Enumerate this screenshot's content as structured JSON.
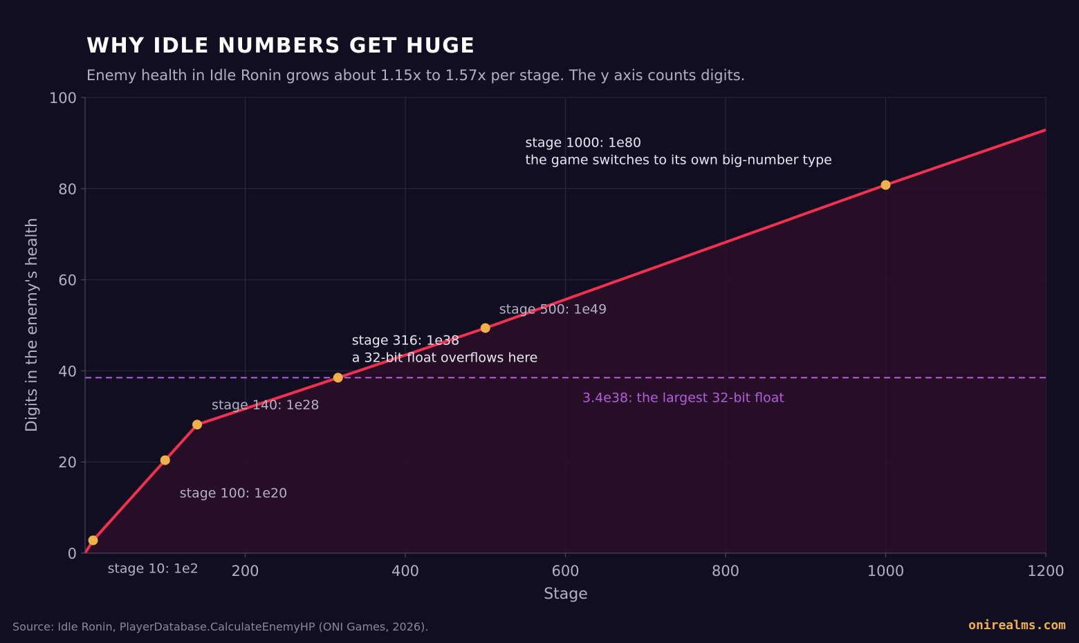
{
  "chart_data": {
    "type": "line",
    "title": "WHY IDLE NUMBERS GET HUGE",
    "subtitle": "Enemy health in Idle Ronin grows about 1.15x to 1.57x per stage. The y axis counts digits.",
    "xlabel": "Stage",
    "ylabel": "Digits in the enemy's health",
    "xlim": [
      0,
      1200
    ],
    "ylim": [
      0,
      100
    ],
    "x_ticks": [
      200,
      400,
      600,
      800,
      1000,
      1200
    ],
    "y_ticks": [
      0,
      20,
      40,
      60,
      80,
      100
    ],
    "grid": true,
    "series": [
      {
        "x": [
          0,
          10,
          100,
          140,
          316,
          500,
          1000,
          1200
        ],
        "y": [
          0,
          2.8,
          20.4,
          28.2,
          38.5,
          49.4,
          80.8,
          92.9
        ]
      }
    ],
    "points": [
      {
        "x": 10,
        "y": 2.8,
        "label": "stage 10: 1e2"
      },
      {
        "x": 100,
        "y": 20.4,
        "label": "stage 100: 1e20"
      },
      {
        "x": 140,
        "y": 28.2,
        "label": "stage 140: 1e28"
      },
      {
        "x": 316,
        "y": 38.5,
        "label": "stage 316: 1e38",
        "note": "a 32-bit float overflows here"
      },
      {
        "x": 500,
        "y": 49.4,
        "label": "stage 500: 1e49"
      },
      {
        "x": 1000,
        "y": 80.8,
        "label": "stage 1000: 1e80",
        "note": "the game switches to its own big-number type"
      }
    ],
    "reference_line": {
      "y": 38.5,
      "label": "3.4e38: the largest 32-bit float"
    },
    "colors": {
      "background": "#120e22",
      "line": "#f2304f",
      "fill": "#2a0f27",
      "marker": "#f0b14a",
      "reference": "#b35ddf",
      "grid": "#2c2840",
      "text": "#e8e6f0",
      "muted": "#b4b0c4",
      "brand": "#f0b14a"
    }
  },
  "footer": {
    "source": "Source: Idle Ronin, PlayerDatabase.CalculateEnemyHP (ONI Games, 2026).",
    "brand": "onirealms.com"
  }
}
